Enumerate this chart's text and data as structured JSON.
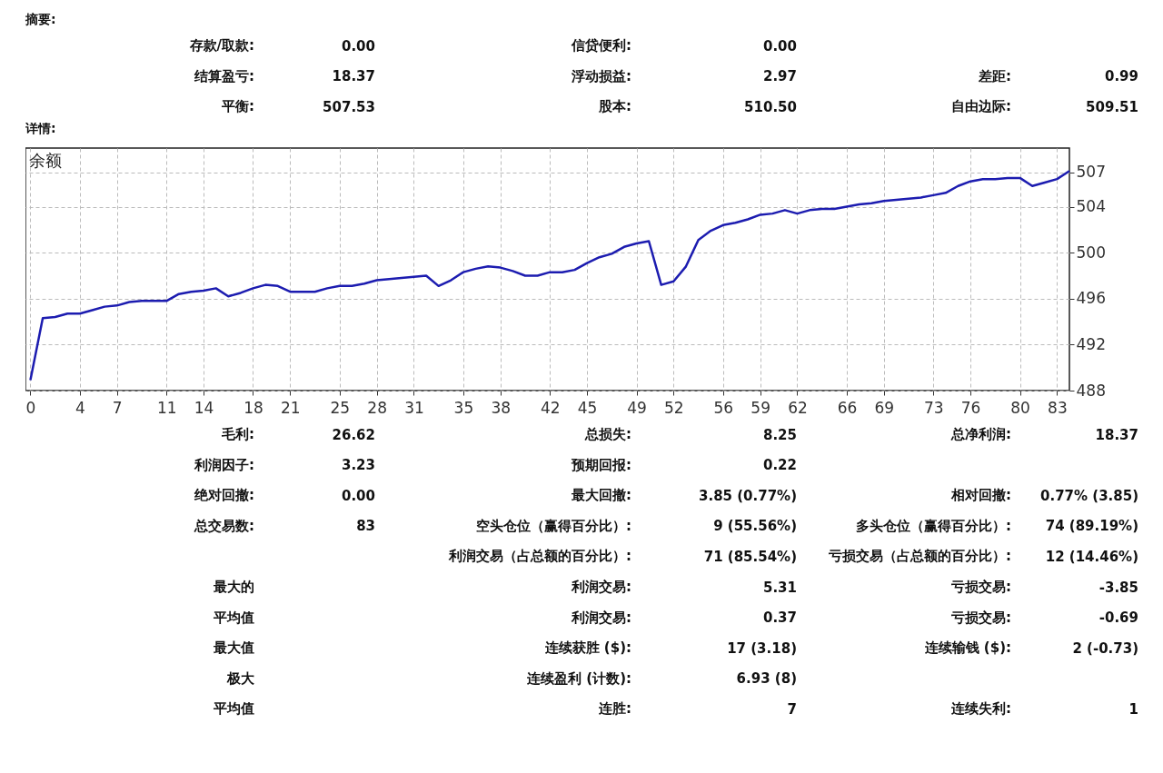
{
  "chart_data": [
    {
      "type": "other",
      "title": "摘要:",
      "annotations": [
        "存款/取款:",
        "0.00",
        "信贷便利:",
        "0.00",
        "结算盈亏:",
        "18.37",
        "浮动损益:",
        "2.97",
        "差距:",
        "0.99",
        "平衡:",
        "507.53",
        "股本:",
        "510.50",
        "自由边际:",
        "509.51"
      ]
    },
    {
      "type": "line",
      "title": "详情:",
      "annotations": [
        "余额"
      ],
      "x": [
        0,
        1,
        2,
        3,
        4,
        5,
        6,
        7,
        8,
        9,
        10,
        11,
        12,
        13,
        14,
        15,
        16,
        17,
        18,
        19,
        20,
        21,
        22,
        23,
        24,
        25,
        26,
        27,
        28,
        29,
        30,
        31,
        32,
        33,
        34,
        35,
        36,
        37,
        38,
        39,
        40,
        41,
        42,
        43,
        44,
        45,
        46,
        47,
        48,
        49,
        50,
        51,
        52,
        53,
        54,
        55,
        56,
        57,
        58,
        59,
        60,
        61,
        62,
        63,
        64,
        65,
        66,
        67,
        68,
        69,
        70,
        71,
        72,
        73,
        74,
        75,
        76,
        77,
        78,
        79,
        80,
        81,
        82,
        83,
        84
      ],
      "series": [
        {
          "color": "#1c1cb0",
          "values": [
            488.9,
            494.3,
            494.4,
            494.7,
            494.7,
            495.0,
            495.3,
            495.4,
            495.7,
            495.8,
            495.8,
            495.8,
            496.4,
            496.6,
            496.7,
            496.9,
            496.2,
            496.5,
            496.9,
            497.2,
            497.1,
            496.6,
            496.6,
            496.6,
            496.9,
            497.1,
            497.1,
            497.3,
            497.6,
            497.7,
            497.8,
            497.9,
            498.0,
            497.1,
            497.6,
            498.3,
            498.6,
            498.8,
            498.7,
            498.4,
            498.0,
            498.0,
            498.3,
            498.3,
            498.5,
            499.1,
            499.6,
            499.9,
            500.5,
            500.8,
            501.0,
            497.2,
            497.5,
            498.8,
            501.1,
            501.9,
            502.4,
            502.6,
            502.9,
            503.3,
            503.4,
            503.7,
            503.4,
            503.7,
            503.8,
            503.8,
            504.0,
            504.2,
            504.3,
            504.5,
            504.6,
            504.7,
            504.8,
            505.0,
            505.2,
            505.8,
            506.2,
            506.4,
            506.4,
            506.5,
            506.5,
            505.8,
            506.1,
            506.4,
            507.1
          ]
        }
      ],
      "xlim": [
        -0.4,
        84
      ],
      "xticks": [
        0,
        4,
        7,
        11,
        14,
        18,
        21,
        25,
        28,
        31,
        35,
        38,
        42,
        45,
        49,
        52,
        56,
        59,
        62,
        66,
        69,
        73,
        76,
        80,
        83
      ],
      "ylim": [
        488,
        509.1
      ],
      "yticks": [
        488,
        492,
        496,
        500,
        504,
        507
      ],
      "grid": true,
      "marker": "none",
      "line_style": "solid"
    },
    {
      "type": "other",
      "annotations": [
        "毛利:",
        "26.62",
        "总损失:",
        "8.25",
        "总净利润:",
        "18.37",
        "利润因子:",
        "3.23",
        "预期回报:",
        "0.22",
        "绝对回撤:",
        "0.00",
        "最大回撤:",
        "3.85 (0.77%)",
        "相对回撤:",
        "0.77% (3.85)",
        "总交易数:",
        "83",
        "空头仓位（赢得百分比）:",
        "9 (55.56%)",
        "多头仓位（赢得百分比）:",
        "74 (89.19%)",
        "利润交易（占总额的百分比）:",
        "71 (85.54%)",
        "亏损交易（占总额的百分比）:",
        "12 (14.46%)",
        "最大的",
        "利润交易:",
        "5.31",
        "亏损交易:",
        "-3.85",
        "平均值",
        "利润交易:",
        "0.37",
        "亏损交易:",
        "-0.69",
        "最大值",
        "连续获胜 ($):",
        "17 (3.18)",
        "连续输钱 ($):",
        "2 (-0.73)",
        "极大",
        "连续盈利 (计数):",
        "6.93 (8)",
        "平均值",
        "连胜:",
        "7",
        "连续失利:",
        "1"
      ]
    }
  ]
}
